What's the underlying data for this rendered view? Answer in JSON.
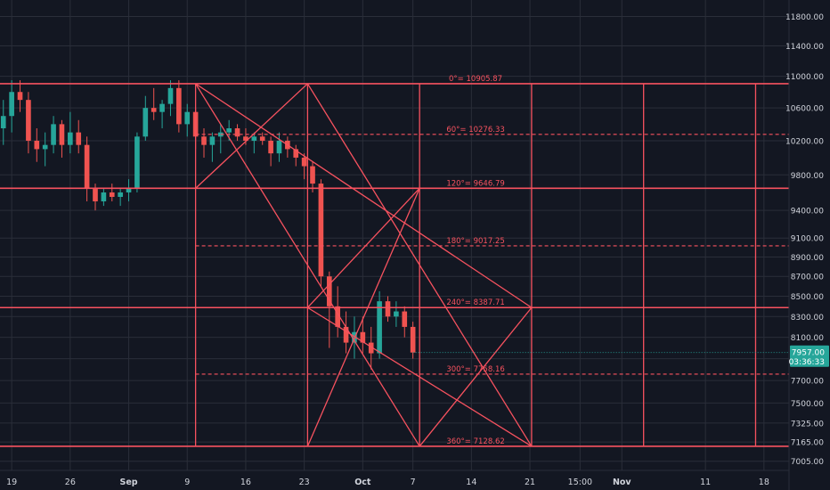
{
  "chart_data": {
    "type": "candlestick",
    "colors": {
      "background": "#131722",
      "grid": "#2a2e39",
      "overlay": "#f7525f",
      "candle_up": "#26a69a",
      "candle_down": "#ef5350",
      "axis_text": "#d1d4dc",
      "price_tag": "#26a69a",
      "level_text": "#f7525f"
    },
    "x_ticks": [
      "19",
      "26",
      "Sep",
      "9",
      "16",
      "23",
      "Oct",
      "7",
      "14",
      "21",
      "15:00",
      "Nov",
      "11",
      "18"
    ],
    "x_tick_pos": [
      -16,
      -9,
      -2,
      5,
      12,
      19,
      26,
      32,
      39,
      46,
      52,
      57,
      67,
      74
    ],
    "x_range": [
      -17.4,
      77.0
    ],
    "y_ticks": [
      7005.0,
      7165.0,
      7325.0,
      7500.0,
      7700.0,
      7900.0,
      8100.0,
      8300.0,
      8500.0,
      8700.0,
      8900.0,
      9100.0,
      9400.0,
      9800.0,
      10200.0,
      10600.0,
      11000.0,
      11400.0,
      11800.0
    ],
    "y_tick_labels": [
      "7005.00",
      "7165.00",
      "7325.00",
      "7500.00",
      "7700.00",
      "7900.00",
      "8100.00",
      "8300.00",
      "8500.00",
      "8700.00",
      "8900.00",
      "9100.00",
      "9400.00",
      "9800.00",
      "10200.00",
      "10600.00",
      "11000.00",
      "11400.00",
      "11800.00"
    ],
    "y_range": [
      6930,
      12030
    ],
    "y_scale": "log",
    "price_tag": {
      "value": 7957.0,
      "label": "7957.00",
      "countdown": "03:36:33"
    },
    "gann_levels": [
      {
        "label": "0°= 10905.87",
        "value": 10905.87,
        "style": "solid"
      },
      {
        "label": "60°= 10276.33",
        "value": 10276.33,
        "style": "dashed"
      },
      {
        "label": "120°= 9646.79",
        "value": 9646.79,
        "style": "solid"
      },
      {
        "label": "180°= 9017.25",
        "value": 9017.25,
        "style": "dashed"
      },
      {
        "label": "240°= 8387.71",
        "value": 8387.71,
        "style": "solid"
      },
      {
        "label": "300°= 7758.16",
        "value": 7758.16,
        "style": "dashed"
      },
      {
        "label": "360°= 7128.62",
        "value": 7128.62,
        "style": "solid"
      }
    ],
    "gann_box": {
      "x_start": 6,
      "vertical_lines": [
        6,
        19.4,
        32.8,
        46.2,
        59.6,
        73
      ],
      "diagonals": [
        [
          [
            6,
            10905.87
          ],
          [
            32.8,
            7128.62
          ]
        ],
        [
          [
            6,
            9646.79
          ],
          [
            19.4,
            10905.87
          ]
        ],
        [
          [
            19.4,
            10905.87
          ],
          [
            46.2,
            7128.62
          ]
        ],
        [
          [
            6,
            10905.87
          ],
          [
            46.2,
            8387.71
          ]
        ],
        [
          [
            19.4,
            7128.62
          ],
          [
            32.8,
            9646.79
          ]
        ],
        [
          [
            32.8,
            7128.62
          ],
          [
            46.2,
            8387.71
          ]
        ],
        [
          [
            19.4,
            8387.71
          ],
          [
            32.8,
            9646.79
          ]
        ],
        [
          [
            19.4,
            8387.71
          ],
          [
            46.2,
            7128.62
          ]
        ]
      ]
    },
    "candles": [
      {
        "x": -17,
        "o": 10350,
        "h": 10700,
        "l": 10150,
        "c": 10500
      },
      {
        "x": -16,
        "o": 10500,
        "h": 10950,
        "l": 10300,
        "c": 10800
      },
      {
        "x": -15,
        "o": 10800,
        "h": 10950,
        "l": 10550,
        "c": 10700
      },
      {
        "x": -14,
        "o": 10700,
        "h": 10800,
        "l": 10050,
        "c": 10200
      },
      {
        "x": -13,
        "o": 10200,
        "h": 10350,
        "l": 9950,
        "c": 10100
      },
      {
        "x": -12,
        "o": 10100,
        "h": 10300,
        "l": 9900,
        "c": 10150
      },
      {
        "x": -11,
        "o": 10150,
        "h": 10500,
        "l": 10050,
        "c": 10400
      },
      {
        "x": -10,
        "o": 10400,
        "h": 10450,
        "l": 10000,
        "c": 10150
      },
      {
        "x": -9,
        "o": 10150,
        "h": 10550,
        "l": 10050,
        "c": 10300
      },
      {
        "x": -8,
        "o": 10300,
        "h": 10450,
        "l": 10050,
        "c": 10150
      },
      {
        "x": -7,
        "o": 10150,
        "h": 10250,
        "l": 9500,
        "c": 9650
      },
      {
        "x": -6,
        "o": 9650,
        "h": 9700,
        "l": 9400,
        "c": 9500
      },
      {
        "x": -5,
        "o": 9500,
        "h": 9650,
        "l": 9450,
        "c": 9600
      },
      {
        "x": -4,
        "o": 9600,
        "h": 9700,
        "l": 9500,
        "c": 9550
      },
      {
        "x": -3,
        "o": 9550,
        "h": 9650,
        "l": 9450,
        "c": 9600
      },
      {
        "x": -2,
        "o": 9600,
        "h": 9750,
        "l": 9500,
        "c": 9650
      },
      {
        "x": -1,
        "o": 9650,
        "h": 10300,
        "l": 9600,
        "c": 10250
      },
      {
        "x": 0,
        "o": 10250,
        "h": 10750,
        "l": 10200,
        "c": 10600
      },
      {
        "x": 1,
        "o": 10600,
        "h": 10850,
        "l": 10450,
        "c": 10550
      },
      {
        "x": 2,
        "o": 10550,
        "h": 10700,
        "l": 10350,
        "c": 10650
      },
      {
        "x": 3,
        "o": 10650,
        "h": 10950,
        "l": 10500,
        "c": 10850
      },
      {
        "x": 4,
        "o": 10850,
        "h": 10950,
        "l": 10300,
        "c": 10400
      },
      {
        "x": 5,
        "o": 10400,
        "h": 10650,
        "l": 10250,
        "c": 10550
      },
      {
        "x": 6,
        "o": 10550,
        "h": 10600,
        "l": 10100,
        "c": 10250
      },
      {
        "x": 7,
        "o": 10250,
        "h": 10350,
        "l": 10000,
        "c": 10150
      },
      {
        "x": 8,
        "o": 10150,
        "h": 10300,
        "l": 9950,
        "c": 10250
      },
      {
        "x": 9,
        "o": 10250,
        "h": 10400,
        "l": 10050,
        "c": 10300
      },
      {
        "x": 10,
        "o": 10300,
        "h": 10450,
        "l": 10200,
        "c": 10350
      },
      {
        "x": 11,
        "o": 10350,
        "h": 10400,
        "l": 10200,
        "c": 10250
      },
      {
        "x": 12,
        "o": 10250,
        "h": 10350,
        "l": 10150,
        "c": 10200
      },
      {
        "x": 13,
        "o": 10200,
        "h": 10300,
        "l": 10050,
        "c": 10250
      },
      {
        "x": 14,
        "o": 10250,
        "h": 10300,
        "l": 10150,
        "c": 10200
      },
      {
        "x": 15,
        "o": 10200,
        "h": 10250,
        "l": 9900,
        "c": 10050
      },
      {
        "x": 16,
        "o": 10050,
        "h": 10300,
        "l": 9950,
        "c": 10200
      },
      {
        "x": 17,
        "o": 10200,
        "h": 10250,
        "l": 10000,
        "c": 10100
      },
      {
        "x": 18,
        "o": 10100,
        "h": 10150,
        "l": 9900,
        "c": 10000
      },
      {
        "x": 19,
        "o": 10000,
        "h": 10050,
        "l": 9750,
        "c": 9900
      },
      {
        "x": 20,
        "o": 9900,
        "h": 9950,
        "l": 9600,
        "c": 9700
      },
      {
        "x": 21,
        "o": 9700,
        "h": 9750,
        "l": 8600,
        "c": 8700
      },
      {
        "x": 22,
        "o": 8700,
        "h": 8750,
        "l": 8000,
        "c": 8400
      },
      {
        "x": 23,
        "o": 8400,
        "h": 8600,
        "l": 8100,
        "c": 8200
      },
      {
        "x": 24,
        "o": 8200,
        "h": 8350,
        "l": 7950,
        "c": 8050
      },
      {
        "x": 25,
        "o": 8050,
        "h": 8300,
        "l": 7900,
        "c": 8150
      },
      {
        "x": 26,
        "o": 8150,
        "h": 8300,
        "l": 7950,
        "c": 8050
      },
      {
        "x": 27,
        "o": 8050,
        "h": 8200,
        "l": 7800,
        "c": 7950
      },
      {
        "x": 28,
        "o": 7950,
        "h": 8550,
        "l": 7900,
        "c": 8450
      },
      {
        "x": 29,
        "o": 8450,
        "h": 8500,
        "l": 8250,
        "c": 8300
      },
      {
        "x": 30,
        "o": 8300,
        "h": 8450,
        "l": 8200,
        "c": 8350
      },
      {
        "x": 31,
        "o": 8350,
        "h": 8400,
        "l": 8100,
        "c": 8200
      },
      {
        "x": 32,
        "o": 8200,
        "h": 8250,
        "l": 7900,
        "c": 7957
      }
    ]
  }
}
